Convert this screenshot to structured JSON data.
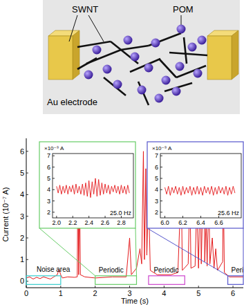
{
  "diagram": {
    "labels": {
      "swnt": "SWNT",
      "pom": "POM",
      "electrode": "Au electrode"
    }
  },
  "chart_data": [
    {
      "type": "line",
      "xlabel": "Time (s)",
      "ylabel": "Current (10⁻⁷ A)",
      "x": [
        0,
        0.1,
        0.2,
        0.3,
        0.4,
        0.5,
        0.6,
        0.7,
        0.8,
        0.9,
        0.95,
        1.0,
        1.05,
        1.2,
        1.4,
        1.48,
        1.5,
        1.52,
        1.55,
        1.57,
        1.7,
        2.0,
        2.5,
        2.9,
        3.0,
        3.05,
        3.2,
        3.3,
        3.35,
        3.4,
        3.43,
        3.47,
        3.5,
        3.55,
        3.6,
        3.8,
        4.2,
        4.4,
        4.5,
        4.53,
        4.7,
        4.75,
        4.78,
        4.9,
        4.95,
        5.0,
        5.05,
        5.08,
        5.15,
        5.18,
        5.22,
        5.25,
        5.3,
        5.33,
        5.4,
        5.45,
        5.5,
        5.55,
        5.7,
        5.72,
        5.75,
        5.9,
        6.3
      ],
      "series": [
        {
          "color": "#e41a1c",
          "values": [
            0.15,
            0.2,
            0.1,
            0.18,
            0.12,
            0.2,
            0.15,
            0.1,
            0.2,
            0.3,
            0.55,
            0.3,
            0.15,
            0.2,
            0.18,
            0.2,
            5.6,
            0.3,
            4.4,
            0.3,
            0.2,
            0.15,
            0.2,
            0.2,
            2.0,
            0.3,
            0.6,
            1.5,
            0.8,
            6.0,
            1.0,
            5.2,
            1.2,
            4.0,
            0.5,
            0.3,
            0.3,
            0.4,
            4.5,
            0.5,
            0.8,
            4.4,
            0.6,
            0.7,
            3.6,
            0.6,
            4.7,
            0.8,
            5.6,
            0.9,
            2.8,
            0.7,
            4.1,
            0.8,
            2.0,
            0.6,
            1.5,
            0.5,
            0.9,
            4.8,
            0.4,
            0.2,
            0.2
          ]
        }
      ],
      "xlim": [
        0,
        6.3
      ],
      "ylim": [
        -0.3,
        6.6
      ],
      "xticks": [
        0,
        1,
        2,
        3,
        4,
        5,
        6
      ],
      "yticks": [
        0,
        1,
        2,
        3,
        4,
        5,
        6
      ],
      "regions": [
        {
          "x": [
            0,
            1.0
          ],
          "y": [
            -0.15,
            0.25
          ],
          "color": "#33cccc"
        },
        {
          "x": [
            2.0,
            3.2
          ],
          "y": [
            -0.15,
            0.25
          ],
          "color": "#66cc66"
        },
        {
          "x": [
            3.55,
            4.6
          ],
          "y": [
            -0.15,
            0.25
          ],
          "color": "#cc44cc"
        },
        {
          "x": [
            5.85,
            6.3
          ],
          "y": [
            -0.15,
            0.25
          ],
          "color": "#5555cc"
        }
      ],
      "annotations": [
        {
          "text": "Noise area",
          "x": 0.3,
          "y": 0.45
        },
        {
          "text": "Periodic",
          "x": 2.1,
          "y": 0.4
        },
        {
          "text": "Periodic",
          "x": 3.7,
          "y": 0.4
        },
        {
          "text": "Peri",
          "x": 5.95,
          "y": 0.4
        }
      ]
    },
    {
      "type": "line",
      "color": "#66cc66",
      "unit_label": "×10⁻⁹ A",
      "annotation": "25.0 Hz",
      "x": [
        2.0,
        2.02,
        2.04,
        2.06,
        2.08,
        2.1,
        2.12,
        2.14,
        2.16,
        2.18,
        2.2,
        2.22,
        2.24,
        2.26,
        2.28,
        2.3,
        2.32,
        2.34,
        2.36,
        2.38,
        2.4,
        2.42,
        2.44,
        2.46,
        2.48,
        2.5,
        2.52,
        2.54,
        2.56,
        2.58,
        2.6,
        2.62,
        2.64,
        2.66,
        2.68,
        2.7,
        2.72,
        2.74,
        2.76,
        2.78,
        2.8,
        2.82,
        2.84,
        2.86,
        2.88,
        2.9
      ],
      "series": [
        {
          "color": "#e41a1c",
          "values": [
            4.3,
            3.7,
            4.4,
            3.6,
            4.3,
            3.7,
            4.4,
            3.6,
            4.3,
            3.8,
            4.4,
            3.6,
            4.5,
            3.7,
            4.3,
            3.6,
            4.5,
            3.5,
            4.6,
            3.4,
            4.8,
            3.3,
            4.7,
            3.6,
            5.0,
            3.4,
            4.9,
            3.5,
            4.6,
            3.6,
            4.5,
            3.7,
            4.4,
            3.6,
            4.3,
            3.8,
            4.4,
            3.7,
            4.3,
            3.6,
            4.4,
            3.7,
            4.3,
            3.6,
            4.4,
            3.7
          ]
        }
      ],
      "xlim": [
        1.95,
        2.95
      ],
      "ylim": [
        1.5,
        7.2
      ],
      "xticks": [
        {
          "value": 2,
          "label": "2.0"
        },
        {
          "value": 2.2,
          "label": "2.2"
        },
        {
          "value": 2.4,
          "label": "2.4"
        },
        {
          "value": 2.6,
          "label": "2.6"
        },
        {
          "value": 2.8,
          "label": "2.8"
        }
      ],
      "yticks": [
        2,
        3,
        4,
        5,
        6,
        7
      ]
    },
    {
      "type": "line",
      "color": "#5555cc",
      "unit_label": "×10⁻⁹ A",
      "annotation": "25.6 Hz",
      "x": [
        6.0,
        6.02,
        6.04,
        6.06,
        6.08,
        6.1,
        6.12,
        6.14,
        6.16,
        6.18,
        6.2,
        6.22,
        6.24,
        6.26,
        6.28,
        6.3,
        6.32,
        6.34,
        6.36,
        6.38,
        6.4,
        6.42,
        6.44,
        6.46,
        6.48,
        6.5,
        6.52,
        6.54,
        6.56,
        6.58,
        6.6,
        6.62,
        6.64,
        6.66,
        6.68,
        6.7,
        6.72,
        6.74,
        6.76,
        6.78
      ],
      "series": [
        {
          "color": "#e41a1c",
          "values": [
            4.2,
            3.6,
            4.3,
            3.5,
            4.2,
            3.7,
            4.3,
            3.6,
            4.2,
            3.5,
            4.3,
            3.6,
            4.2,
            3.7,
            4.3,
            3.5,
            4.2,
            3.6,
            4.3,
            3.6,
            4.2,
            3.5,
            4.3,
            3.7,
            4.2,
            3.6,
            4.3,
            3.5,
            4.2,
            3.6,
            4.3,
            3.7,
            4.2,
            3.6,
            4.3,
            3.5,
            4.2,
            3.6,
            4.3,
            3.7
          ]
        }
      ],
      "xlim": [
        5.95,
        6.85
      ],
      "ylim": [
        1.5,
        7.2
      ],
      "xticks": [
        {
          "value": 6,
          "label": "6.0"
        },
        {
          "value": 6.2,
          "label": "6.2"
        },
        {
          "value": 6.4,
          "label": "6.4"
        },
        {
          "value": 6.6,
          "label": "6.6"
        }
      ],
      "yticks": [
        2,
        3,
        4,
        5,
        6,
        7
      ]
    }
  ]
}
